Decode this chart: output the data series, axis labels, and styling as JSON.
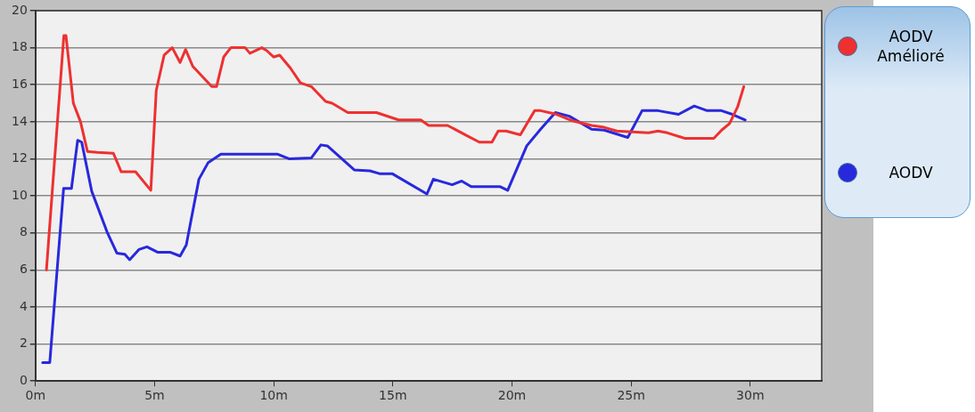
{
  "chart_data": {
    "type": "line",
    "xlim": [
      0,
      33
    ],
    "ylim": [
      0,
      20
    ],
    "xticks": [
      {
        "value": 0,
        "label": "0m"
      },
      {
        "value": 5,
        "label": "5m"
      },
      {
        "value": 10,
        "label": "10m"
      },
      {
        "value": 15,
        "label": "15m"
      },
      {
        "value": 20,
        "label": "20m"
      },
      {
        "value": 25,
        "label": "25m"
      },
      {
        "value": 30,
        "label": "30m"
      }
    ],
    "yticks": [
      0,
      2,
      4,
      6,
      8,
      10,
      12,
      14,
      16,
      18,
      20
    ],
    "grid": "y",
    "legend": "right",
    "marker": "none",
    "line_style": "solid",
    "series": [
      {
        "name": "AODV Amélioré",
        "color": "#ee3030",
        "x": [
          0.46,
          1.19,
          1.28,
          1.59,
          1.89,
          2.18,
          2.6,
          3.27,
          3.6,
          4.2,
          4.84,
          5.07,
          5.4,
          5.74,
          6.07,
          6.3,
          6.6,
          7.4,
          7.6,
          7.9,
          8.2,
          8.8,
          9.0,
          9.5,
          9.7,
          10.0,
          10.25,
          10.7,
          11.12,
          11.58,
          12.18,
          12.45,
          13.11,
          14.31,
          15.24,
          16.17,
          16.5,
          17.3,
          18.03,
          18.63,
          19.16,
          19.42,
          19.75,
          20.35,
          20.95,
          21.2,
          21.88,
          22.54,
          23.34,
          23.87,
          24.4,
          25.73,
          26.13,
          26.53,
          27.27,
          28.47,
          28.8,
          29.13,
          29.47,
          29.73
        ],
        "values": [
          6.0,
          18.65,
          18.65,
          15.0,
          14.0,
          12.4,
          12.35,
          12.3,
          11.3,
          11.3,
          10.3,
          15.7,
          17.6,
          18.0,
          17.2,
          17.9,
          17.0,
          15.9,
          15.9,
          17.5,
          18.0,
          18.0,
          17.7,
          18.0,
          17.85,
          17.5,
          17.6,
          16.9,
          16.1,
          15.9,
          15.1,
          15.0,
          14.5,
          14.5,
          14.1,
          14.1,
          13.8,
          13.8,
          13.3,
          12.9,
          12.9,
          13.5,
          13.5,
          13.3,
          14.6,
          14.6,
          14.4,
          14.05,
          13.8,
          13.7,
          13.5,
          13.4,
          13.5,
          13.4,
          13.1,
          13.1,
          13.55,
          13.9,
          14.8,
          15.9
        ]
      },
      {
        "name": "AODV",
        "color": "#2828dd",
        "x": [
          0.3,
          0.6,
          1.18,
          1.51,
          1.77,
          1.94,
          2.36,
          3.02,
          3.42,
          3.75,
          3.95,
          4.34,
          4.68,
          5.14,
          5.67,
          6.07,
          6.33,
          6.86,
          7.25,
          7.78,
          10.17,
          10.64,
          11.58,
          11.98,
          12.25,
          13.38,
          14.04,
          14.44,
          14.97,
          16.43,
          16.7,
          17.49,
          17.89,
          18.29,
          19.49,
          19.82,
          20.62,
          21.2,
          21.82,
          22.41,
          23.34,
          23.87,
          24.86,
          25.46,
          26.13,
          26.99,
          27.65,
          28.19,
          28.79,
          29.25,
          29.79
        ],
        "values": [
          1.0,
          1.0,
          10.4,
          10.4,
          13.0,
          12.9,
          10.25,
          8.0,
          6.9,
          6.85,
          6.55,
          7.1,
          7.25,
          6.95,
          6.95,
          6.75,
          7.35,
          10.9,
          11.8,
          12.25,
          12.25,
          12.0,
          12.05,
          12.75,
          12.7,
          11.4,
          11.35,
          11.2,
          11.2,
          10.1,
          10.9,
          10.6,
          10.8,
          10.5,
          10.5,
          10.3,
          12.7,
          13.6,
          14.5,
          14.3,
          13.6,
          13.55,
          13.15,
          14.6,
          14.6,
          14.4,
          14.85,
          14.6,
          14.6,
          14.4,
          14.1
        ]
      }
    ]
  }
}
